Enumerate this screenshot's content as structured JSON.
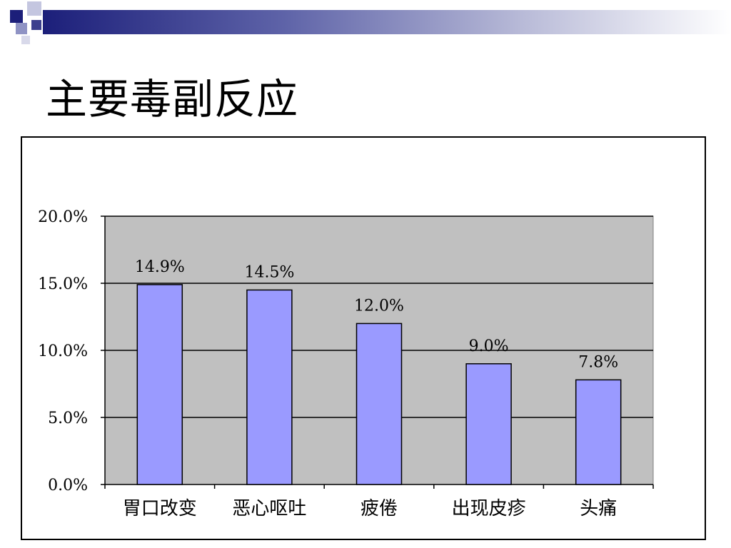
{
  "slide": {
    "title": "主要毒副反应"
  },
  "colors": {
    "bar_fill": "#9a9aff",
    "plot_background": "#c0c0c0",
    "header_band_dark": "#1c1f7a",
    "header_band_light": "#b9bbd8"
  },
  "chart_data": {
    "type": "bar",
    "categories": [
      "胃口改变",
      "恶心呕吐",
      "疲倦",
      "出现皮疹",
      "头痛"
    ],
    "values": [
      14.9,
      14.5,
      12.0,
      9.0,
      7.8
    ],
    "data_labels": [
      "14.9%",
      "14.5%",
      "12.0%",
      "9.0%",
      "7.8%"
    ],
    "y_ticks": [
      0,
      5,
      10,
      15,
      20
    ],
    "y_tick_labels": [
      "0.0%",
      "5.0%",
      "10.0%",
      "15.0%",
      "20.0%"
    ],
    "ylim": [
      0,
      20
    ],
    "grid": true,
    "legend": "none"
  }
}
